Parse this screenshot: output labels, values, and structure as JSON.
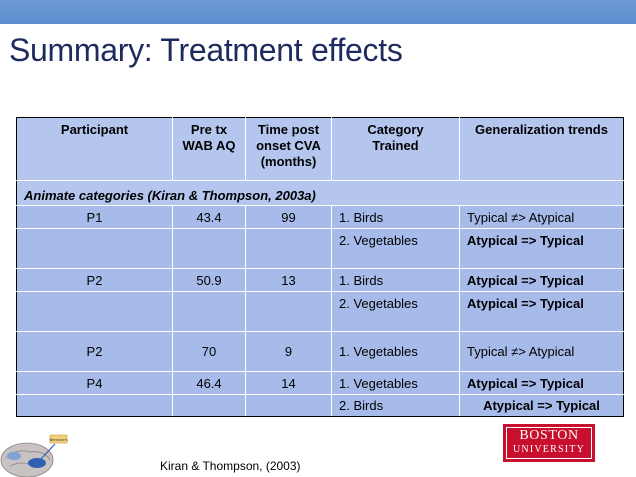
{
  "slide": {
    "title": "Summary: Treatment effects",
    "citation": "Kiran & Thompson, (2003)"
  },
  "logo": {
    "line1": "BOSTON",
    "line2": "UNIVERSITY"
  },
  "brain_label": "Wernicke's",
  "table": {
    "headers": [
      "Participant",
      "Pre tx\nWAB AQ",
      "Time post\nonset CVA\n(months)",
      "Category\nTrained",
      "Generalization trends"
    ],
    "section": "Animate categories (Kiran & Thompson, 2003a)",
    "rows": [
      [
        "P1",
        "43.4",
        "99",
        "1. Birds",
        "Typical ≠> Atypical"
      ],
      [
        "",
        "",
        "",
        "2. Vegetables",
        "Atypical => Typical"
      ],
      [
        "P2",
        "50.9",
        "13",
        "1. Birds",
        "Atypical => Typical"
      ],
      [
        "",
        "",
        "",
        "2. Vegetables",
        "Atypical => Typical"
      ],
      [
        "P2",
        "70",
        "9",
        "1. Vegetables",
        "Typical ≠> Atypical"
      ],
      [
        "P4",
        "46.4",
        "14",
        "1. Vegetables",
        "Atypical => Typical"
      ],
      [
        "",
        "",
        "",
        "2. Birds",
        "Atypical => Typical"
      ]
    ]
  },
  "colors": {
    "title": "#1f2b5e",
    "topbar": "#5b8ccd",
    "table_fill": "#a6bbe9",
    "logo_red": "#c8102e"
  }
}
